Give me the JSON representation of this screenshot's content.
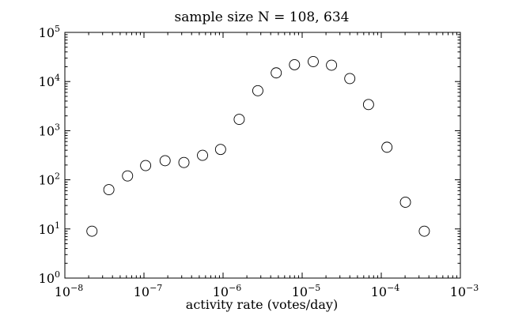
{
  "chart_data": {
    "type": "scatter",
    "title": "sample size N = 108, 634",
    "xlabel": "activity rate (votes/day)",
    "ylabel": "",
    "xscale": "log",
    "yscale": "log",
    "xlim": [
      1e-08,
      0.001
    ],
    "ylim": [
      1,
      100000
    ],
    "grid": false,
    "legend": "none",
    "marker": "open-circle",
    "x_ticks": [
      {
        "base": "10",
        "exp": "−8",
        "value": 1e-08
      },
      {
        "base": "10",
        "exp": "−7",
        "value": 1e-07
      },
      {
        "base": "10",
        "exp": "−6",
        "value": 1e-06
      },
      {
        "base": "10",
        "exp": "−5",
        "value": 1e-05
      },
      {
        "base": "10",
        "exp": "−4",
        "value": 0.0001
      },
      {
        "base": "10",
        "exp": "−3",
        "value": 0.001
      }
    ],
    "y_ticks": [
      {
        "base": "10",
        "exp": "0",
        "value": 1
      },
      {
        "base": "10",
        "exp": "1",
        "value": 10
      },
      {
        "base": "10",
        "exp": "2",
        "value": 100
      },
      {
        "base": "10",
        "exp": "3",
        "value": 1000
      },
      {
        "base": "10",
        "exp": "4",
        "value": 10000
      },
      {
        "base": "10",
        "exp": "5",
        "value": 100000
      }
    ],
    "points": [
      {
        "x": 2.2e-08,
        "y": 9
      },
      {
        "x": 3.6e-08,
        "y": 63
      },
      {
        "x": 6.2e-08,
        "y": 120
      },
      {
        "x": 1.05e-07,
        "y": 195
      },
      {
        "x": 1.85e-07,
        "y": 245
      },
      {
        "x": 3.2e-07,
        "y": 225
      },
      {
        "x": 5.5e-07,
        "y": 315
      },
      {
        "x": 9.3e-07,
        "y": 415
      },
      {
        "x": 1.6e-06,
        "y": 1700
      },
      {
        "x": 2.75e-06,
        "y": 6500
      },
      {
        "x": 4.7e-06,
        "y": 15000
      },
      {
        "x": 8e-06,
        "y": 22000
      },
      {
        "x": 1.38e-05,
        "y": 25500
      },
      {
        "x": 2.35e-05,
        "y": 21500
      },
      {
        "x": 4e-05,
        "y": 11500
      },
      {
        "x": 6.9e-05,
        "y": 3400
      },
      {
        "x": 0.000118,
        "y": 460
      },
      {
        "x": 0.000202,
        "y": 35
      },
      {
        "x": 0.00035,
        "y": 9
      }
    ]
  }
}
